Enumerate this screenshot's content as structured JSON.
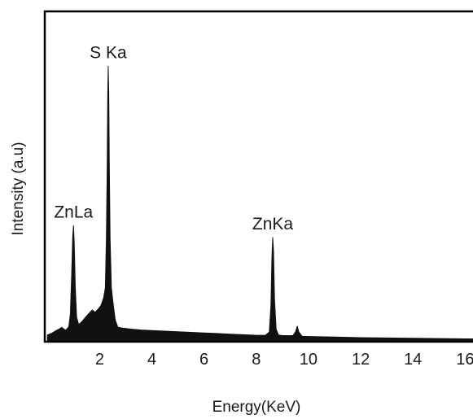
{
  "chart_data": {
    "type": "area",
    "title": "",
    "xlabel": "Energy(KeV)",
    "ylabel": "Intensity (a.u)",
    "xlim": [
      -0.1,
      16.3
    ],
    "ylim": [
      0,
      100
    ],
    "x_ticks": [
      2,
      4,
      6,
      8,
      10,
      12,
      14,
      16
    ],
    "y_ticks": [],
    "grid": false,
    "fill_color": "#111111",
    "series": [
      {
        "values": [
          [
            0.0,
            2.0
          ],
          [
            0.15,
            2.5
          ],
          [
            0.3,
            3.3
          ],
          [
            0.45,
            4.0
          ],
          [
            0.55,
            4.6
          ],
          [
            0.6,
            4.2
          ],
          [
            0.7,
            3.6
          ],
          [
            0.82,
            4.8
          ],
          [
            0.88,
            9.0
          ],
          [
            0.93,
            22.0
          ],
          [
            0.97,
            35.0
          ],
          [
            1.0,
            39.0
          ],
          [
            1.03,
            33.0
          ],
          [
            1.07,
            18.0
          ],
          [
            1.12,
            8.0
          ],
          [
            1.2,
            5.5
          ],
          [
            1.35,
            6.8
          ],
          [
            1.5,
            8.4
          ],
          [
            1.62,
            9.6
          ],
          [
            1.72,
            10.5
          ],
          [
            1.82,
            9.7
          ],
          [
            1.95,
            10.8
          ],
          [
            2.05,
            12.0
          ],
          [
            2.15,
            14.5
          ],
          [
            2.22,
            18.0
          ],
          [
            2.26,
            35.0
          ],
          [
            2.29,
            60.0
          ],
          [
            2.31,
            82.0
          ],
          [
            2.33,
            93.0
          ],
          [
            2.35,
            84.0
          ],
          [
            2.37,
            62.0
          ],
          [
            2.4,
            35.0
          ],
          [
            2.45,
            18.0
          ],
          [
            2.52,
            12.5
          ],
          [
            2.6,
            7.0
          ],
          [
            2.7,
            4.6
          ],
          [
            2.9,
            4.3
          ],
          [
            3.2,
            4.0
          ],
          [
            3.6,
            3.7
          ],
          [
            4.0,
            3.5
          ],
          [
            4.5,
            3.3
          ],
          [
            5.0,
            3.1
          ],
          [
            5.5,
            2.9
          ],
          [
            6.0,
            2.7
          ],
          [
            6.5,
            2.5
          ],
          [
            7.0,
            2.3
          ],
          [
            7.5,
            2.1
          ],
          [
            8.0,
            1.9
          ],
          [
            8.35,
            1.9
          ],
          [
            8.5,
            3.0
          ],
          [
            8.56,
            12.0
          ],
          [
            8.6,
            28.0
          ],
          [
            8.63,
            35.0
          ],
          [
            8.66,
            30.0
          ],
          [
            8.7,
            14.0
          ],
          [
            8.76,
            4.0
          ],
          [
            8.85,
            2.0
          ],
          [
            9.0,
            1.8
          ],
          [
            9.4,
            1.8
          ],
          [
            9.5,
            3.0
          ],
          [
            9.57,
            5.0
          ],
          [
            9.63,
            3.0
          ],
          [
            9.75,
            1.6
          ],
          [
            10.0,
            1.5
          ],
          [
            11.0,
            1.3
          ],
          [
            12.0,
            1.1
          ],
          [
            13.0,
            1.0
          ],
          [
            14.0,
            0.9
          ],
          [
            15.0,
            0.8
          ],
          [
            16.0,
            0.7
          ],
          [
            16.3,
            0.7
          ]
        ]
      }
    ],
    "annotations": [
      {
        "text": "S Ka",
        "x": 2.33,
        "y": 93.0
      },
      {
        "text": "ZnLa",
        "x": 1.0,
        "y": 39.0
      },
      {
        "text": "ZnKa",
        "x": 8.63,
        "y": 35.0
      }
    ]
  }
}
